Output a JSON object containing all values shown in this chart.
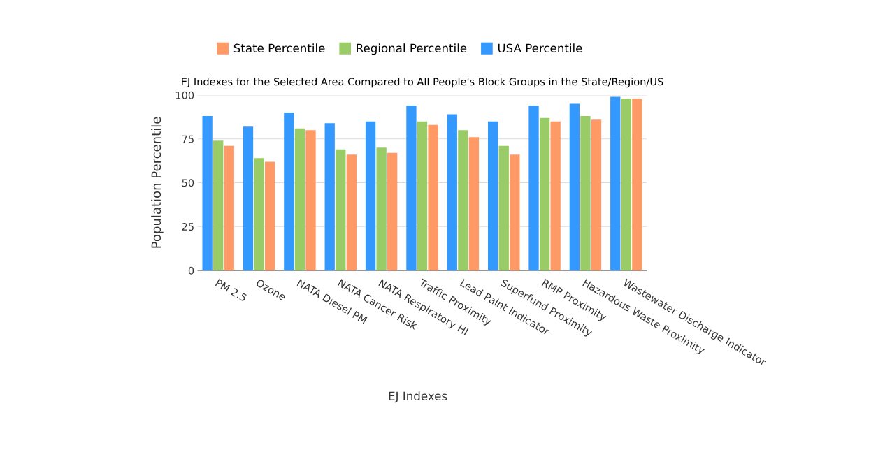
{
  "chart_data": {
    "type": "bar",
    "title": "EJ Indexes for the Selected Area Compared to All People's Block Groups in the State/Region/US",
    "xlabel": "EJ Indexes",
    "ylabel": "Population Percentile",
    "categories": [
      "PM 2.5",
      "Ozone",
      "NATA Diesel PM",
      "NATA Cancer Risk",
      "NATA Respiratory HI",
      "Traffic Proximity",
      "Lead Paint Indicator",
      "Superfund Proximity",
      "RMP Proximity",
      "Hazardous Waste Proximity",
      "Wastewater Discharge Indicator"
    ],
    "series": [
      {
        "name": "USA Percentile",
        "color": "#3399ff",
        "values": [
          88,
          82,
          90,
          84,
          85,
          94,
          89,
          85,
          94,
          95,
          99
        ]
      },
      {
        "name": "Regional Percentile",
        "color": "#99cc66",
        "values": [
          74,
          64,
          81,
          69,
          70,
          85,
          80,
          71,
          87,
          88,
          98
        ]
      },
      {
        "name": "State Percentile",
        "color": "#ff9966",
        "values": [
          71,
          62,
          80,
          66,
          67,
          83,
          76,
          66,
          85,
          86,
          98
        ]
      }
    ],
    "ylim": [
      0,
      100
    ],
    "yticks": [
      0,
      25,
      50,
      75,
      100
    ],
    "grid": "y",
    "legend": "top"
  }
}
